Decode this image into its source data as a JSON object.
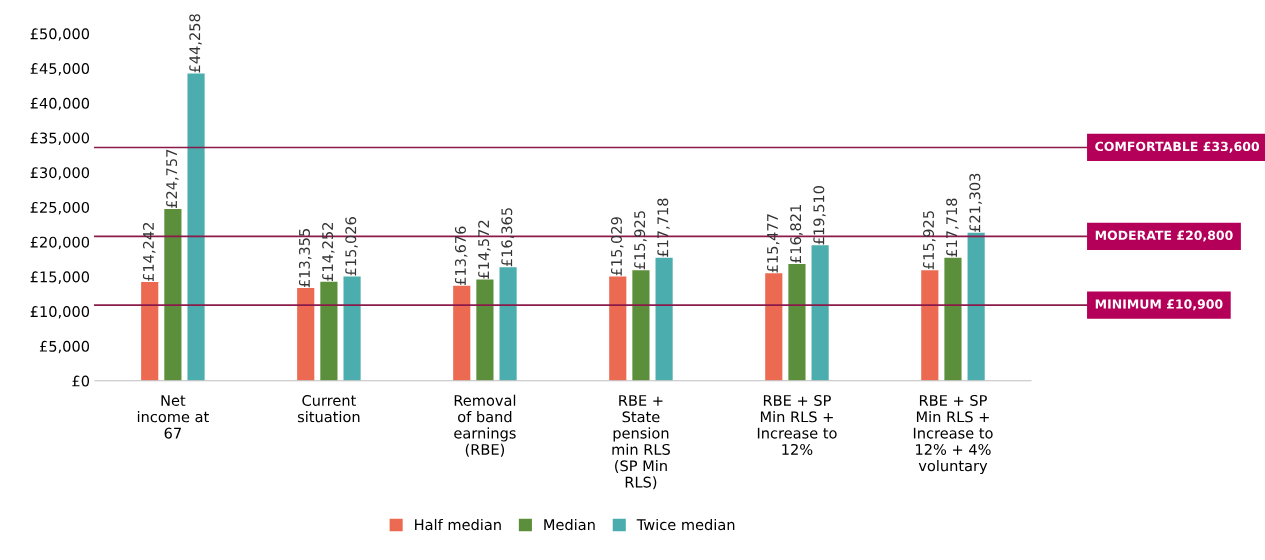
{
  "chart_data": {
    "type": "bar",
    "categories": [
      "Net\nincome at\n67",
      "Current\nsituation",
      "Removal\nof band\nearnings\n(RBE)",
      "RBE +\nState\npension\nmin RLS\n(SP Min\nRLS)",
      "RBE + SP\nMin RLS +\nIncrease to\n12%",
      "RBE + SP\nMin RLS +\nIncrease to\n12% + 4%\nvoluntary"
    ],
    "series": [
      {
        "name": "Half median",
        "color": "#ec6a51",
        "values": [
          14242,
          13355,
          13676,
          15029,
          15477,
          15925
        ],
        "value_labels": [
          "£14,242",
          "£13,355",
          "£13,676",
          "£15,029",
          "£15,477",
          "£15,925"
        ]
      },
      {
        "name": "Median",
        "color": "#5b8f3b",
        "values": [
          24757,
          14252,
          14572,
          15925,
          16821,
          17718
        ],
        "value_labels": [
          "£24,757",
          "£14,252",
          "£14,572",
          "£15,925",
          "£16,821",
          "£17,718"
        ]
      },
      {
        "name": "Twice median",
        "color": "#4badad",
        "values": [
          44258,
          15026,
          16365,
          17718,
          19510,
          21303
        ],
        "value_labels": [
          "£44,258",
          "£15,026",
          "£16,365",
          "£17,718",
          "£19,510",
          "£21,303"
        ]
      }
    ],
    "ylim": [
      0,
      50000
    ],
    "yticks": [
      {
        "value": 0,
        "label": "£0"
      },
      {
        "value": 5000,
        "label": "£5,000"
      },
      {
        "value": 10000,
        "label": "£10,000"
      },
      {
        "value": 15000,
        "label": "£15,000"
      },
      {
        "value": 20000,
        "label": "£20,000"
      },
      {
        "value": 25000,
        "label": "£25,000"
      },
      {
        "value": 30000,
        "label": "£30,000"
      },
      {
        "value": 35000,
        "label": "£35,000"
      },
      {
        "value": 40000,
        "label": "£40,000"
      },
      {
        "value": 45000,
        "label": "£45,000"
      },
      {
        "value": 50000,
        "label": "£50,000"
      }
    ],
    "ref_lines": [
      {
        "axis": "y",
        "value": 33600,
        "label": "COMFORTABLE £33,600",
        "color": "#8b1a4b"
      },
      {
        "axis": "y",
        "value": 20800,
        "label": "MODERATE £20,800",
        "color": "#8b1a4b"
      },
      {
        "axis": "y",
        "value": 10900,
        "label": "MINIMUM £10,900",
        "color": "#8b1a4b"
      }
    ],
    "grid": false,
    "legend": "bottom"
  }
}
